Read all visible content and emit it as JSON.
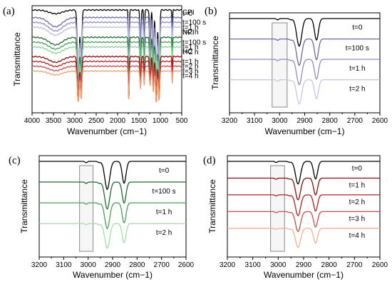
{
  "chart_data": [
    {
      "panel": "(a)",
      "type": "line",
      "xlabel": "Wavenumber (cm−1)",
      "ylabel": "Transmittance",
      "xlim": [
        4000,
        500
      ],
      "xticks": [
        "4000",
        "3500",
        "3000",
        "2500",
        "2000",
        "1500",
        "1000",
        "500"
      ],
      "group_labels": [
        {
          "text": "CPI",
          "color": "#6a6aa8"
        },
        {
          "text": "NPI",
          "color": "#2e7d3a"
        },
        {
          "text": "HC",
          "color": "#a01a1a"
        }
      ],
      "series": [
        {
          "name": "t=0",
          "color": "#000000",
          "offset": 1.0
        },
        {
          "name": "t=100 s",
          "color": "#6a6aa8",
          "offset": 0.93
        },
        {
          "name": "t=1 h",
          "color": "#8e8ec6",
          "offset": 0.885
        },
        {
          "name": "t=2 h",
          "color": "#bcbce2",
          "offset": 0.84
        },
        {
          "name": "t=100 s",
          "color": "#1f6b32",
          "offset": 0.745
        },
        {
          "name": "t=1 h",
          "color": "#48a05a",
          "offset": 0.7
        },
        {
          "name": "t=2 h",
          "color": "#8dd097",
          "offset": 0.655
        },
        {
          "name": "t=1 h",
          "color": "#8b0d0d",
          "offset": 0.565
        },
        {
          "name": "t=2 h",
          "color": "#b52020",
          "offset": 0.52
        },
        {
          "name": "t=3 h",
          "color": "#d44a4a",
          "offset": 0.475
        },
        {
          "name": "t=4 h",
          "color": "#f0a070",
          "offset": 0.43
        }
      ],
      "label_colors": [
        "#000000",
        "#5a5aa0",
        "#6a6ab0",
        "#9a9ad0",
        "#1f6b32",
        "#2e8b40",
        "#7ac088",
        "#8b0d0d",
        "#a01a1a",
        "#c03030",
        "#e88030"
      ]
    },
    {
      "panel": "(b)",
      "type": "line",
      "xlabel": "Wavenumber (cm−1)",
      "ylabel": "Transmittance",
      "xlim": [
        3200,
        2600
      ],
      "xticks": [
        "3200",
        "3100",
        "3000",
        "2900",
        "2800",
        "2700",
        "2600"
      ],
      "highlight_region": [
        3030,
        2970
      ],
      "series": [
        {
          "name": "t=0",
          "color": "#000000",
          "label_color": "#000000"
        },
        {
          "name": "t=100 s",
          "color": "#6a6aa8",
          "label_color": "#6a6aa8"
        },
        {
          "name": "t=1 h",
          "color": "#8e8ec6",
          "label_color": "#6a6ab0"
        },
        {
          "name": "t=2 h",
          "color": "#c6c6e6",
          "label_color": "#c6c6e6"
        }
      ]
    },
    {
      "panel": "(c)",
      "type": "line",
      "xlabel": "Wavenumber (cm−1)",
      "ylabel": "Transmittance",
      "xlim": [
        3200,
        2600
      ],
      "xticks": [
        "3200",
        "3100",
        "3000",
        "2900",
        "2800",
        "2700",
        "2600"
      ],
      "highlight_region": [
        3035,
        2980
      ],
      "series": [
        {
          "name": "t=0",
          "color": "#000000",
          "label_color": "#000000"
        },
        {
          "name": "t=100 s",
          "color": "#1f6b32",
          "label_color": "#1f6b32"
        },
        {
          "name": "t=1 h",
          "color": "#48a05a",
          "label_color": "#2e9a40"
        },
        {
          "name": "t=2 h",
          "color": "#a6dca9",
          "label_color": "#a6dca9"
        }
      ]
    },
    {
      "panel": "(d)",
      "type": "line",
      "xlabel": "Wavenumber (cm−1)",
      "ylabel": "Transmittance",
      "xlim": [
        3200,
        2600
      ],
      "xticks": [
        "3200",
        "3100",
        "3000",
        "2900",
        "2800",
        "2700",
        "2600"
      ],
      "highlight_region": [
        3030,
        2975
      ],
      "series": [
        {
          "name": "t=0",
          "color": "#000000",
          "label_color": "#000000"
        },
        {
          "name": "t=1 h",
          "color": "#8b0d0d",
          "label_color": "#8b0d0d"
        },
        {
          "name": "t=2 h",
          "color": "#b52020",
          "label_color": "#a01a1a"
        },
        {
          "name": "t=3 h",
          "color": "#d44a4a",
          "label_color": "#c02828"
        },
        {
          "name": "t=4 h",
          "color": "#f2b090",
          "label_color": "#f0a070"
        }
      ]
    }
  ]
}
